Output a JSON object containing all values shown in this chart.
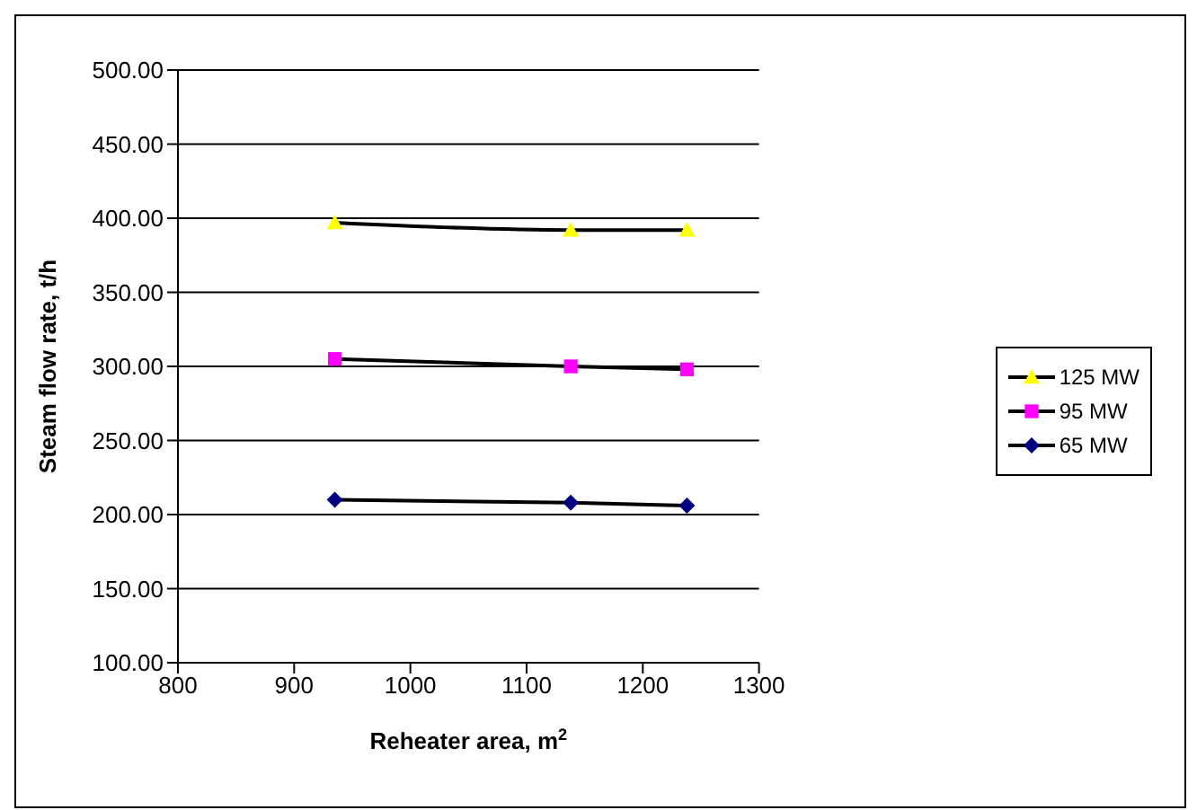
{
  "chart_data": {
    "type": "line",
    "xlabel": "Reheater area, m$^{2}$",
    "ylabel": "Steam flow rate, t/h",
    "x": [
      935,
      1138,
      1238
    ],
    "series": [
      {
        "name": "125 MW",
        "color": "#ffff00",
        "marker": "triangle",
        "values": [
          397,
          392,
          392
        ]
      },
      {
        "name": "95 MW",
        "color": "#ff00ff",
        "marker": "square",
        "values": [
          305,
          300,
          298
        ]
      },
      {
        "name": "65 MW",
        "color": "#000080",
        "marker": "diamond",
        "values": [
          210,
          208,
          206
        ]
      }
    ],
    "xlim": [
      800,
      1300
    ],
    "xticks": [
      800,
      900,
      1000,
      1100,
      1200,
      1300
    ],
    "ylim": [
      100,
      500
    ],
    "yticks": [
      {
        "value": 100,
        "label": "100.00"
      },
      {
        "value": 150,
        "label": "150.00"
      },
      {
        "value": 200,
        "label": "200.00"
      },
      {
        "value": 250,
        "label": "250.00"
      },
      {
        "value": 300,
        "label": "300.00"
      },
      {
        "value": 350,
        "label": "350.00"
      },
      {
        "value": 400,
        "label": "400.00"
      },
      {
        "value": 450,
        "label": "450.00"
      },
      {
        "value": 500,
        "label": "500.00"
      }
    ],
    "grid": "y",
    "legend": "right"
  }
}
